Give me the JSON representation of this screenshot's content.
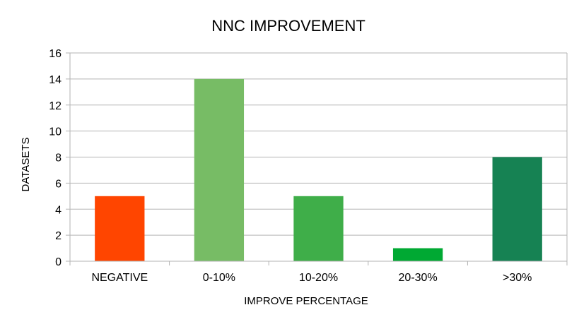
{
  "chart_data": {
    "type": "bar",
    "title": "NNC IMPROVEMENT",
    "xlabel": "IMPROVE PERCENTAGE",
    "ylabel": "DATASETS",
    "categories": [
      "NEGATIVE",
      "0-10%",
      "10-20%",
      "20-30%",
      ">30%"
    ],
    "values": [
      5,
      14,
      5,
      1,
      8
    ],
    "bar_colors": [
      "#ff4500",
      "#77bc65",
      "#3fae49",
      "#00a933",
      "#168253"
    ],
    "ylim": [
      0,
      16
    ],
    "yticks": [
      0,
      2,
      4,
      6,
      8,
      10,
      12,
      14,
      16
    ],
    "grid": true,
    "legend": "none"
  }
}
